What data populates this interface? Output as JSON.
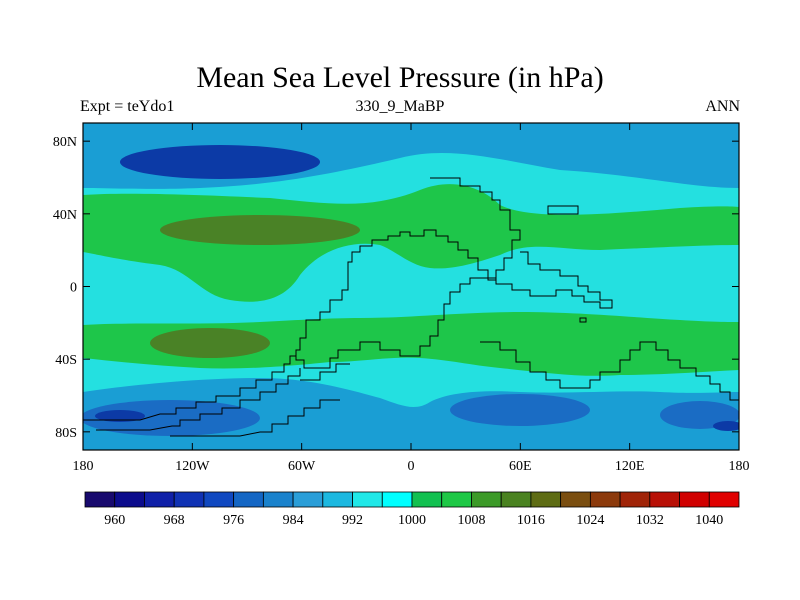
{
  "title": "Mean Sea Level Pressure (in hPa)",
  "subtitle_left": "Expt = teYdo1",
  "subtitle_center": "330_9_MaBP",
  "subtitle_right": "ANN",
  "chart_data": {
    "type": "heatmap",
    "variable": "Mean Sea Level Pressure",
    "units": "hPa",
    "x_axis": {
      "range": [
        -180,
        180
      ],
      "ticks": [
        -180,
        -120,
        -60,
        0,
        60,
        120,
        180
      ],
      "tick_labels": [
        "180",
        "120W",
        "60W",
        "0",
        "60E",
        "120E",
        "180"
      ]
    },
    "y_axis": {
      "range": [
        -90,
        90
      ],
      "ticks": [
        80,
        40,
        0,
        -40,
        -80
      ],
      "tick_labels": [
        "80N",
        "40N",
        "0",
        "40S",
        "80S"
      ]
    },
    "colorbar": {
      "levels": [
        960,
        964,
        968,
        972,
        976,
        980,
        984,
        988,
        992,
        996,
        1000,
        1004,
        1008,
        1012,
        1016,
        1020,
        1024,
        1028,
        1032,
        1036,
        1040
      ],
      "labels": [
        "960",
        "968",
        "976",
        "984",
        "992",
        "1000",
        "1008",
        "1016",
        "1024",
        "1032",
        "1040"
      ],
      "colors": [
        "#180a6e",
        "#0c0c8c",
        "#1020a8",
        "#1032b4",
        "#1048c0",
        "#1466c4",
        "#1a82cc",
        "#2a9ed8",
        "#1cb8e0",
        "#20e8e8",
        "#00ffff",
        "#12c050",
        "#1ec846",
        "#3c9a28",
        "#4a8220",
        "#5e6c14",
        "#7a4e10",
        "#8c3a0c",
        "#a02408",
        "#b81006",
        "#d00000",
        "#e00000"
      ]
    },
    "field_colors": {
      "ocean_band": "#24e0e0",
      "deep_low": "#1a6cc4",
      "mid_low": "#1a9ed4",
      "core_low": "#0c3aa6",
      "high_green": "#1ec64a",
      "high_olive": "#4a8226"
    }
  }
}
